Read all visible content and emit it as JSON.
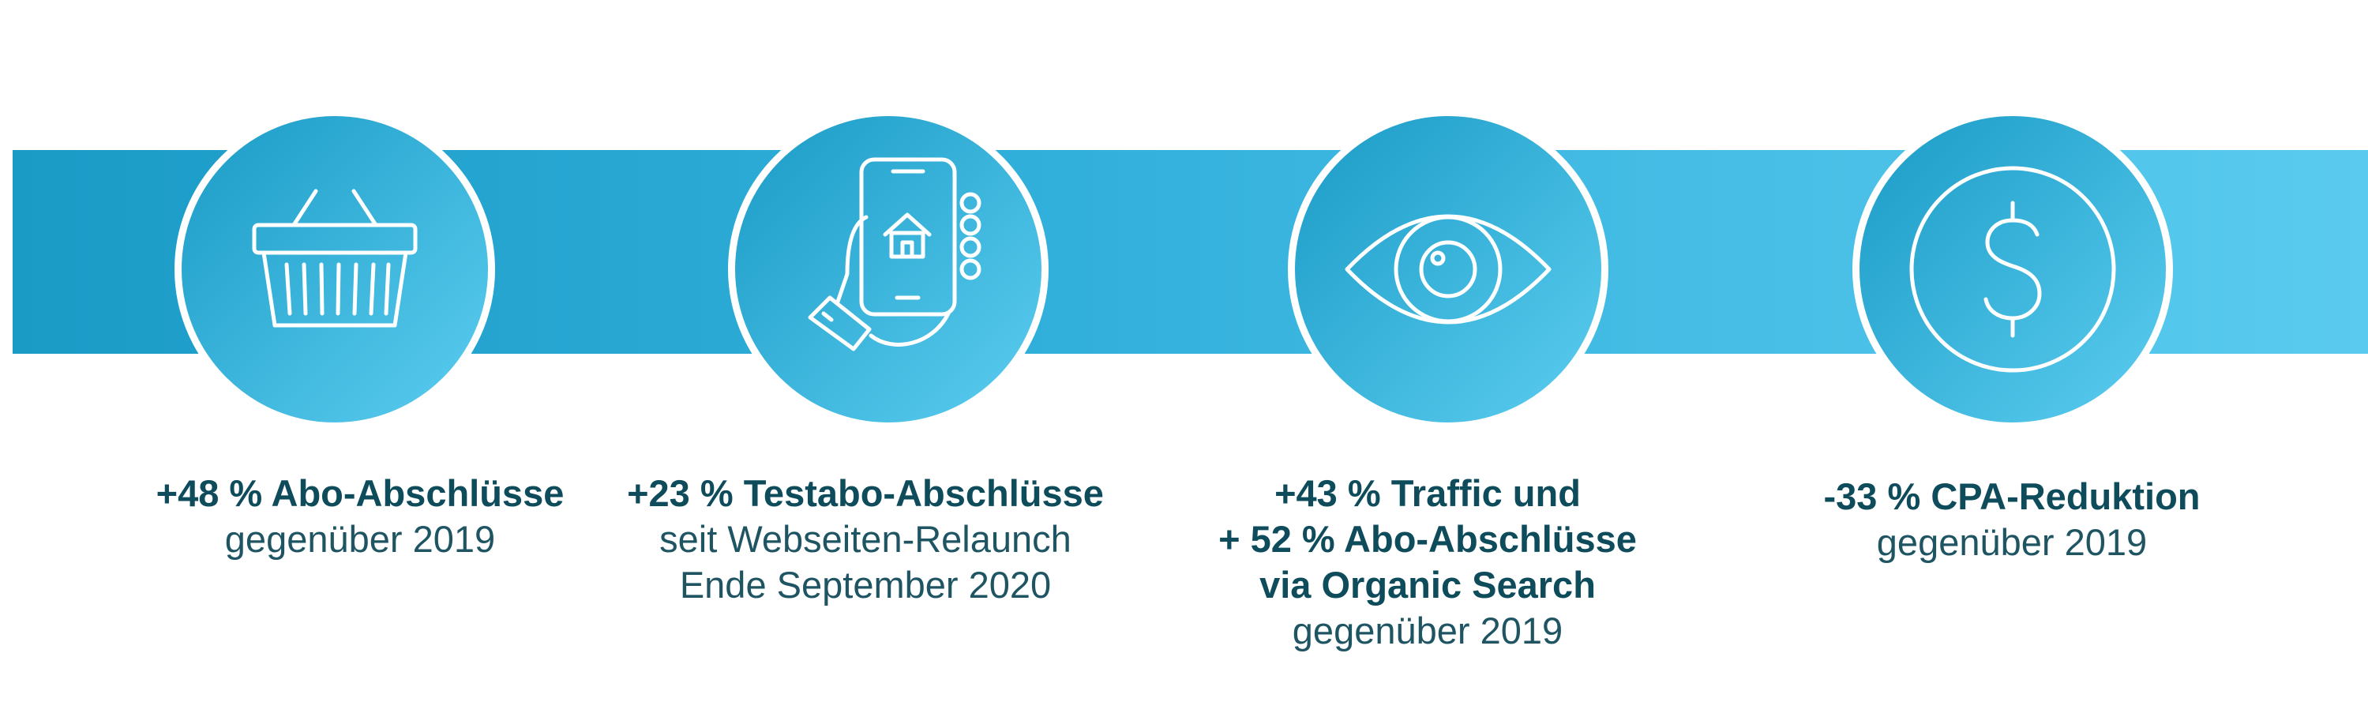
{
  "stats": [
    {
      "icon": "basket-icon",
      "headline": [
        "+48 % Abo-Abschlüsse"
      ],
      "sub": [
        "gegenüber 2019"
      ]
    },
    {
      "icon": "smartphone-hand-icon",
      "headline": [
        "+23 % Testabo-Abschlüsse"
      ],
      "sub": [
        "seit Webseiten-Relaunch",
        "Ende September 2020"
      ]
    },
    {
      "icon": "eye-icon",
      "headline": [
        "+43 % Traffic und",
        "+ 52 % Abo-Abschlüsse",
        "via Organic Search"
      ],
      "sub": [
        "gegenüber 2019"
      ]
    },
    {
      "icon": "dollar-icon",
      "headline": [
        "-33 % CPA-Reduktion"
      ],
      "sub": [
        "gegenüber 2019"
      ]
    }
  ],
  "colors": {
    "band_start": "#1a9bc6",
    "band_end": "#5acbef",
    "text": "#0e4b5b",
    "circle_border": "#ffffff"
  }
}
